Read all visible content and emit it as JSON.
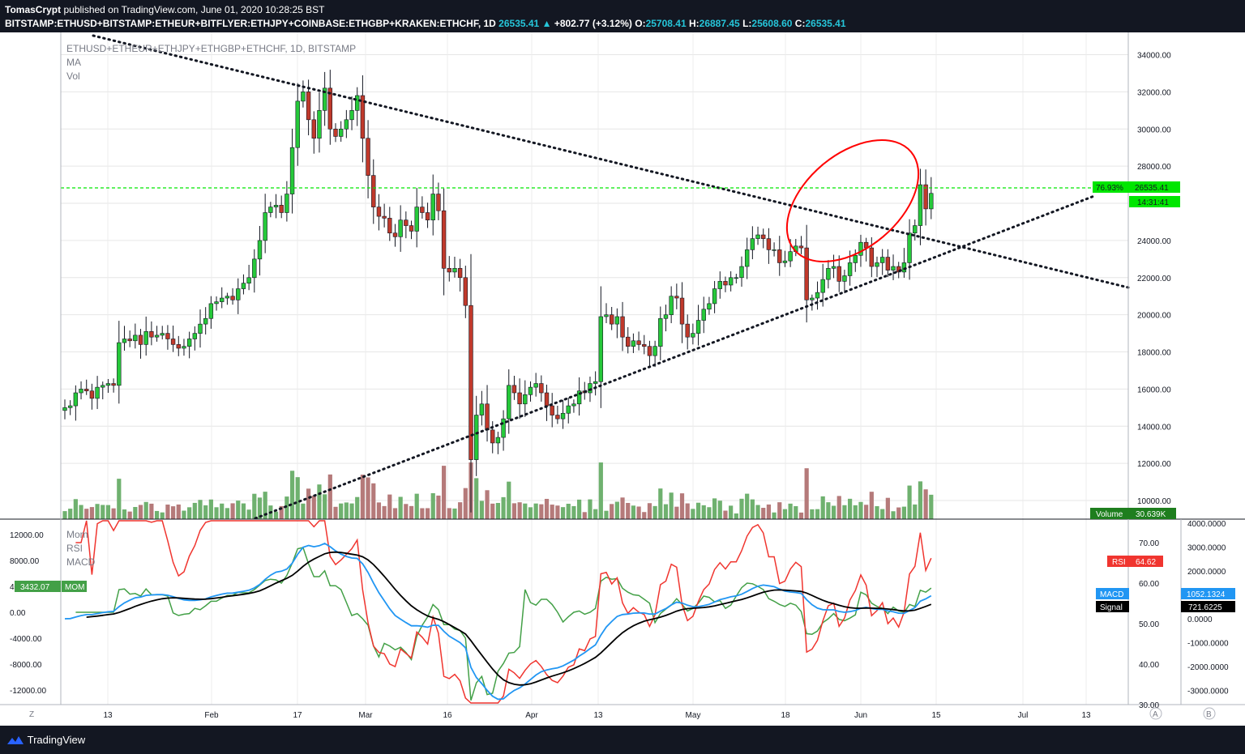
{
  "header": {
    "author": "TomasCrypt",
    "published_text": "published on TradingView.com, June 01, 2020 10:28:25 BST",
    "symbol": "BITSTAMP:ETHUSD+BITSTAMP:ETHEUR+BITFLYER:ETHJPY+COINBASE:ETHGBP+KRAKEN:ETHCHF, 1D",
    "last": "26535.41",
    "change": "+802.77 (+3.12%)",
    "o_label": "O:",
    "o_value": "25708.41",
    "h_label": "H:",
    "h_value": "26887.45",
    "l_label": "L:",
    "l_value": "25608.60",
    "c_label": "C:",
    "c_value": "26535.41"
  },
  "legend": {
    "symbol_line": "ETHUSD+ETHEUR+ETHJPY+ETHGBP+ETHCHF, 1D, BITSTAMP",
    "ma": "MA",
    "vol": "Vol",
    "mom": "Mom",
    "rsi": "RSI",
    "macd": "MACD"
  },
  "badges": {
    "price_pct": "76.93%",
    "price": "26535.41",
    "countdown": "14:31:41",
    "volume_label": "Volume",
    "volume_value": "30.639K",
    "rsi_label": "RSI",
    "rsi_value": "64.62",
    "macd_label": "MACD",
    "macd_value": "1052.1324",
    "signal_label": "Signal",
    "signal_value": "721.6225",
    "mom_value": "3432.07",
    "mom_label": "MOM"
  },
  "colors": {
    "up": "#26c93a",
    "down": "#c0392b",
    "vol_up": "#6fb16f",
    "vol_down": "#b57a7a",
    "hline": "#00e600",
    "rsi": "#f0352f",
    "mom": "#43a047",
    "macd": "#2196f3",
    "signal": "#000000",
    "circle": "#ff0000"
  },
  "footer": {
    "brand": "TradingView",
    "z": "Z",
    "a": "A",
    "b": "B"
  },
  "chart_data": [
    {
      "type": "candlestick",
      "title": "ETHUSD+ETHEUR+ETHJPY+ETHGBP+ETHCHF, 1D, BITSTAMP",
      "x_ticks": [
        "13",
        "Feb",
        "17",
        "Mar",
        "16",
        "Apr",
        "13",
        "May",
        "18",
        "Jun",
        "15",
        "Jul",
        "13"
      ],
      "y_ticks": [
        10000,
        12000,
        14000,
        16000,
        18000,
        20000,
        22000,
        24000,
        26000,
        28000,
        30000,
        32000,
        34000
      ],
      "ylim": [
        9000,
        35200
      ],
      "close_series": [
        15000,
        15100,
        15800,
        16000,
        15900,
        15500,
        16100,
        16200,
        16300,
        16200,
        18500,
        18700,
        18600,
        18900,
        18400,
        19100,
        18800,
        18900,
        19000,
        18700,
        18400,
        18200,
        18300,
        18700,
        19000,
        19500,
        19800,
        20600,
        20700,
        20900,
        21000,
        20800,
        21400,
        21700,
        22000,
        23000,
        24000,
        25500,
        25800,
        25900,
        25500,
        26500,
        29000,
        31500,
        32000,
        30500,
        29500,
        31000,
        32200,
        30000,
        29600,
        30000,
        30500,
        31000,
        31800,
        29500,
        27500,
        25800,
        25300,
        25200,
        24400,
        24200,
        25100,
        24800,
        24500,
        25800,
        25500,
        25100,
        26500,
        25600,
        22500,
        22300,
        22500,
        22000,
        20500,
        12200,
        14600,
        15200,
        13800,
        13100,
        13400,
        14400,
        16200,
        15800,
        15200,
        15700,
        16100,
        16300,
        15800,
        15100,
        14600,
        14400,
        14700,
        15100,
        15200,
        15900,
        15800,
        16300,
        16400,
        19900,
        20000,
        19500,
        19900,
        18800,
        18300,
        18600,
        18400,
        18300,
        17800,
        18300,
        19800,
        20000,
        21000,
        20900,
        19500,
        18800,
        19000,
        19700,
        20300,
        20600,
        21400,
        21800,
        21600,
        22000,
        22000,
        22600,
        23500,
        24100,
        24300,
        24100,
        23500,
        23500,
        22800,
        22900,
        23400,
        23700,
        23600,
        20800,
        20900,
        21200,
        21900,
        22500,
        22600,
        21800,
        22100,
        22800,
        23200,
        23900,
        23600,
        22600,
        22800,
        23100,
        22400,
        22600,
        22300,
        22800,
        24400,
        24800,
        27000,
        25700,
        26535
      ]
    },
    {
      "type": "bar",
      "title": "Vol",
      "last_value": "30.639K"
    },
    {
      "type": "line",
      "title": "Mom, RSI, MACD",
      "y_ticks_left": [
        -12000,
        -8000,
        -4000,
        0,
        4000,
        8000,
        12000
      ],
      "y_ticks_rsi": [
        30,
        40,
        50,
        60,
        70
      ],
      "y_ticks_macd": [
        -3000,
        -2000,
        -1000,
        0,
        1000,
        2000,
        3000,
        4000
      ],
      "series": [
        {
          "name": "RSI",
          "last": 64.62
        },
        {
          "name": "MOM",
          "last": 3432.07
        },
        {
          "name": "MACD",
          "last": 1052.1324
        },
        {
          "name": "Signal",
          "last": 721.6225
        }
      ]
    }
  ]
}
